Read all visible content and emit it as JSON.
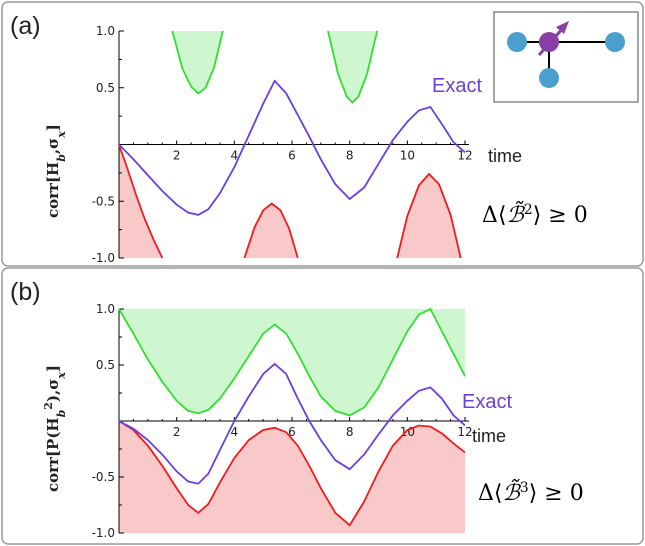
{
  "colors": {
    "exact": "#6a3fe0",
    "upper": "#2fe02f",
    "upper_fill": "#cff7cf",
    "lower": "#ee1c1c",
    "lower_fill": "#f9c9c9",
    "node": "#4a9fcf",
    "center_node": "#8a3fa8",
    "arrow": "#8a3fa8",
    "frame": "#9a9a9a"
  },
  "chart_data": [
    {
      "type": "line",
      "panel_label": "(a)",
      "xlabel": "time",
      "ylabel": "corr[H_b, σ_x]",
      "ylabel_text": "corr[H",
      "ylabel_sub": "b",
      "ylabel_tail": ",σ",
      "ylabel_sub2": "x",
      "ylabel_end": "]",
      "xlim": [
        0,
        12
      ],
      "ylim": [
        -1.0,
        1.0
      ],
      "xticks": [
        "2",
        "4",
        "6",
        "8",
        "10",
        "12"
      ],
      "yticks": [
        "1.0",
        "0.5",
        "-0.5",
        "-1.0"
      ],
      "series_label": "Exact",
      "formula": {
        "prefix": "Δ⟨",
        "symbol": "ℬ̃",
        "power": "2",
        "suffix": "⟩ ≥ 0"
      },
      "exact": {
        "x": [
          0,
          0.5,
          1,
          1.5,
          2,
          2.4,
          2.75,
          3.1,
          3.5,
          4,
          4.5,
          5,
          5.4,
          5.8,
          6.2,
          6.6,
          7,
          7.5,
          8,
          8.5,
          9,
          9.5,
          10,
          10.4,
          10.8,
          11.2,
          11.6,
          12
        ],
        "y": [
          0,
          -0.13,
          -0.27,
          -0.41,
          -0.53,
          -0.6,
          -0.62,
          -0.57,
          -0.43,
          -0.2,
          0.08,
          0.36,
          0.56,
          0.45,
          0.26,
          0.07,
          -0.13,
          -0.35,
          -0.48,
          -0.38,
          -0.17,
          0.04,
          0.2,
          0.3,
          0.33,
          0.18,
          0.02,
          -0.07
        ]
      },
      "upper_bound_segments": [
        {
          "x": [
            1.85,
            2.2,
            2.5,
            2.75,
            3.0,
            3.3,
            3.6
          ],
          "y": [
            1.0,
            0.67,
            0.51,
            0.45,
            0.5,
            0.68,
            1.0
          ]
        },
        {
          "x": [
            7.25,
            7.6,
            7.9,
            8.1,
            8.3,
            8.6,
            8.95
          ],
          "y": [
            1.0,
            0.62,
            0.42,
            0.37,
            0.42,
            0.62,
            1.0
          ]
        }
      ],
      "lower_bound_segments": [
        {
          "x": [
            0,
            0.3,
            0.6,
            0.9,
            1.2,
            1.5
          ],
          "y": [
            0,
            -0.22,
            -0.45,
            -0.66,
            -0.84,
            -1.0
          ]
        },
        {
          "x": [
            4.35,
            4.7,
            5.0,
            5.3,
            5.6,
            5.9,
            6.2
          ],
          "y": [
            -1.0,
            -0.73,
            -0.58,
            -0.52,
            -0.58,
            -0.74,
            -1.0
          ]
        },
        {
          "x": [
            9.65,
            10.0,
            10.4,
            10.75,
            11.1,
            11.5,
            11.85
          ],
          "y": [
            -1.0,
            -0.63,
            -0.36,
            -0.26,
            -0.35,
            -0.62,
            -1.0
          ]
        }
      ]
    },
    {
      "type": "line",
      "panel_label": "(b)",
      "xlabel": "time",
      "ylabel": "corr[P(H_b^2), σ_x]",
      "ylabel_text": "corr[P(H",
      "ylabel_sub": "b",
      "ylabel_sup": "2",
      "ylabel_tail": "),σ",
      "ylabel_sub2": "x",
      "ylabel_end": "]",
      "xlim": [
        0,
        12
      ],
      "ylim": [
        -1.0,
        1.0
      ],
      "xticks": [
        "2",
        "4",
        "6",
        "8",
        "10",
        "12"
      ],
      "yticks": [
        "1.0",
        "0.5",
        "-0.5",
        "-1.0"
      ],
      "series_label": "Exact",
      "formula": {
        "prefix": "Δ⟨",
        "symbol": "ℬ̃",
        "power": "3",
        "suffix": "⟩ ≥ 0"
      },
      "exact": {
        "x": [
          0,
          0.5,
          1,
          1.5,
          2,
          2.4,
          2.75,
          3.1,
          3.5,
          4,
          4.5,
          5,
          5.4,
          5.8,
          6.2,
          6.6,
          7,
          7.5,
          8,
          8.5,
          9,
          9.5,
          10,
          10.4,
          10.8,
          11.2,
          11.6,
          12
        ],
        "y": [
          0,
          -0.07,
          -0.17,
          -0.3,
          -0.45,
          -0.54,
          -0.56,
          -0.47,
          -0.26,
          0.0,
          0.22,
          0.42,
          0.51,
          0.42,
          0.2,
          0.0,
          -0.17,
          -0.35,
          -0.43,
          -0.3,
          -0.12,
          0.05,
          0.18,
          0.27,
          0.3,
          0.2,
          0.05,
          -0.04
        ]
      },
      "upper_bound": {
        "x": [
          0,
          0.5,
          1,
          1.5,
          2,
          2.4,
          2.75,
          3.1,
          3.5,
          4,
          4.5,
          5,
          5.4,
          5.8,
          6.2,
          6.6,
          7,
          7.5,
          8,
          8.5,
          9,
          9.5,
          10,
          10.4,
          10.8,
          11.2,
          11.6,
          12
        ],
        "y": [
          1.0,
          0.78,
          0.55,
          0.35,
          0.18,
          0.09,
          0.07,
          0.1,
          0.2,
          0.38,
          0.58,
          0.78,
          0.86,
          0.78,
          0.6,
          0.4,
          0.22,
          0.09,
          0.05,
          0.12,
          0.3,
          0.55,
          0.8,
          0.95,
          1.0,
          0.8,
          0.6,
          0.4
        ]
      },
      "lower_bound": {
        "x": [
          0,
          0.5,
          1,
          1.5,
          2,
          2.4,
          2.75,
          3.1,
          3.5,
          4,
          4.5,
          5,
          5.4,
          5.8,
          6.2,
          6.6,
          7,
          7.5,
          8,
          8.5,
          9,
          9.5,
          10,
          10.4,
          10.8,
          11.2,
          11.6,
          12
        ],
        "y": [
          0,
          -0.08,
          -0.22,
          -0.4,
          -0.6,
          -0.75,
          -0.82,
          -0.74,
          -0.55,
          -0.33,
          -0.17,
          -0.08,
          -0.06,
          -0.1,
          -0.22,
          -0.4,
          -0.6,
          -0.82,
          -0.93,
          -0.72,
          -0.45,
          -0.22,
          -0.08,
          -0.04,
          -0.05,
          -0.11,
          -0.2,
          -0.28
        ]
      }
    }
  ]
}
